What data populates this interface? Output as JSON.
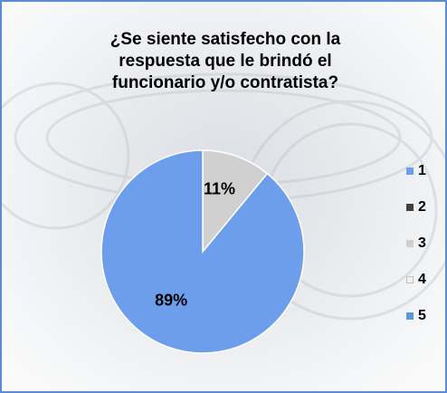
{
  "chart_data": {
    "type": "pie",
    "title": "¿Se siente satisfecho con la respuesta que le brindó el funcionario y/o contratista?",
    "title_lines": [
      "¿Se siente satisfecho con la",
      "respuesta que le brindó el",
      "funcionario y/o contratista?"
    ],
    "categories": [
      "1",
      "2",
      "3",
      "4",
      "5"
    ],
    "values": [
      89,
      0,
      11,
      0,
      0
    ],
    "data_labels": [
      "89%",
      "",
      "11%",
      "",
      ""
    ],
    "colors": [
      "#6d9eeb",
      "#404040",
      "#d0d0d0",
      "#f2f2f2",
      "#5b9bd5"
    ],
    "legend_position": "right"
  }
}
